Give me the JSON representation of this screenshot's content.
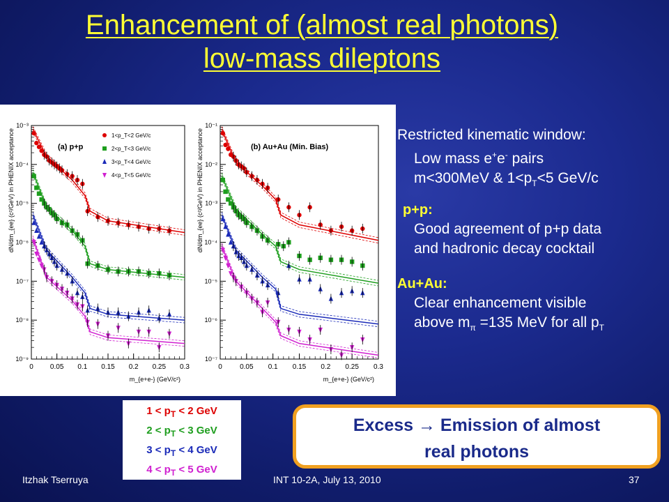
{
  "slide": {
    "title_line1": "Enhancement of (almost real photons)",
    "title_line2": "low-mass dileptons",
    "heading": "Restricted kinematic window:",
    "line_mass_a": "Low mass e",
    "line_mass_b": "e",
    "line_mass_c": " pairs",
    "sup_plus": "+",
    "sup_minus": "-",
    "line_window_a": "m<300MeV  & 1<p",
    "line_window_b": "<5 GeV/c",
    "sub_T": "T",
    "pp_title": "p+p:",
    "pp_line1": "Good agreement of p+p data",
    "pp_line2": "and hadronic decay cocktail",
    "au_title": "Au+Au:",
    "au_line1": "Clear enhancement visible",
    "au_line2a": "above m",
    "au_pi": "π",
    "au_line2b": " =135 MeV for all p",
    "excess_line1": "Excess → Emission of almost",
    "excess_line2": "real photons",
    "legend": [
      {
        "text": "1 < p",
        "sub": "T",
        "rest": " < 2 GeV",
        "color": "#dd0000"
      },
      {
        "text": "2 < p",
        "sub": "T",
        "rest": " < 3 GeV",
        "color": "#1e9e1e"
      },
      {
        "text": "3 < p",
        "sub": "T",
        "rest": " < 4 GeV",
        "color": "#1a2ab8"
      },
      {
        "text": "4 < p",
        "sub": "T",
        "rest": " < 5 GeV",
        "color": "#d020d0"
      }
    ],
    "footer_left": "Itzhak Tserruya",
    "footer_center": "INT 10-2A, July 13, 2010",
    "footer_right": "37"
  },
  "chart_data": [
    {
      "type": "scatter",
      "title": "(a) p+p",
      "xlabel": "m_{e+e-} (GeV/c²)",
      "ylabel": "dN/dm_{ee} (c²/GeV) in PHENIX acceptance",
      "xlim": [
        0,
        0.3
      ],
      "ylim_log10": [
        -9,
        -3
      ],
      "log_y": true,
      "x_ticks": [
        "0",
        "0.05",
        "0.1",
        "0.15",
        "0.2",
        "0.25",
        "0.3"
      ],
      "y_ticks": [
        "10⁻⁹",
        "10⁻⁸",
        "10⁻⁷",
        "10⁻⁶",
        "10⁻⁵",
        "10⁻⁴",
        "10⁻³"
      ],
      "legend": [
        "1<p_T<2 GeV/c",
        "2<p_T<3 GeV/c",
        "3<p_T<4 GeV/c",
        "4<p_T<5 GeV/c"
      ],
      "series": [
        {
          "name": "1<p_T<2 GeV/c",
          "color": "#dd0000",
          "marker": "circle",
          "x": [
            0.005,
            0.01,
            0.015,
            0.02,
            0.025,
            0.03,
            0.035,
            0.04,
            0.045,
            0.05,
            0.055,
            0.06,
            0.07,
            0.08,
            0.09,
            0.1,
            0.11,
            0.13,
            0.15,
            0.17,
            0.19,
            0.21,
            0.23,
            0.25,
            0.27
          ],
          "y": [
            -3.2,
            -3.45,
            -3.55,
            -3.65,
            -3.75,
            -3.8,
            -3.9,
            -3.95,
            -4.0,
            -4.05,
            -4.1,
            -4.15,
            -4.25,
            -4.3,
            -4.4,
            -4.5,
            -5.2,
            -5.35,
            -5.45,
            -5.5,
            -5.55,
            -5.6,
            -5.65,
            -5.65,
            -5.7
          ],
          "curve": [
            [
              0.003,
              -3.1
            ],
            [
              0.03,
              -3.8
            ],
            [
              0.08,
              -4.4
            ],
            [
              0.105,
              -4.8
            ],
            [
              0.115,
              -5.2
            ],
            [
              0.15,
              -5.45
            ],
            [
              0.3,
              -5.75
            ]
          ]
        },
        {
          "name": "2<p_T<3 GeV/c",
          "color": "#1e9e1e",
          "marker": "square",
          "x": [
            0.005,
            0.01,
            0.015,
            0.02,
            0.025,
            0.03,
            0.035,
            0.04,
            0.045,
            0.05,
            0.06,
            0.07,
            0.08,
            0.09,
            0.1,
            0.11,
            0.13,
            0.15,
            0.17,
            0.19,
            0.21,
            0.23,
            0.25,
            0.27
          ],
          "y": [
            -4.3,
            -4.6,
            -4.75,
            -4.9,
            -5.0,
            -5.1,
            -5.15,
            -5.25,
            -5.3,
            -5.4,
            -5.5,
            -5.55,
            -5.7,
            -5.8,
            -5.95,
            -6.55,
            -6.6,
            -6.7,
            -6.75,
            -6.75,
            -6.75,
            -6.8,
            -6.8,
            -6.85
          ],
          "curve": [
            [
              0.003,
              -4.2
            ],
            [
              0.03,
              -5.1
            ],
            [
              0.08,
              -5.7
            ],
            [
              0.105,
              -6.1
            ],
            [
              0.115,
              -6.55
            ],
            [
              0.15,
              -6.7
            ],
            [
              0.3,
              -6.9
            ]
          ]
        },
        {
          "name": "3<p_T<4 GeV/c",
          "color": "#1a2ab8",
          "marker": "triangle",
          "x": [
            0.005,
            0.01,
            0.015,
            0.02,
            0.025,
            0.03,
            0.035,
            0.04,
            0.045,
            0.05,
            0.06,
            0.07,
            0.08,
            0.09,
            0.1,
            0.11,
            0.13,
            0.15,
            0.17,
            0.19,
            0.21,
            0.23,
            0.25,
            0.27
          ],
          "y": [
            -5.5,
            -5.7,
            -5.85,
            -6.0,
            -6.1,
            -6.2,
            -6.3,
            -6.4,
            -6.5,
            -6.6,
            -6.7,
            -6.8,
            -7.0,
            -7.3,
            -7.4,
            -7.75,
            -7.7,
            -7.8,
            -7.8,
            -7.9,
            -7.8,
            -7.75,
            -7.95,
            -7.85
          ],
          "curve": [
            [
              0.003,
              -5.3
            ],
            [
              0.03,
              -6.2
            ],
            [
              0.08,
              -6.9
            ],
            [
              0.105,
              -7.3
            ],
            [
              0.115,
              -7.7
            ],
            [
              0.15,
              -7.85
            ],
            [
              0.3,
              -8.0
            ]
          ]
        },
        {
          "name": "4<p_T<5 GeV/c",
          "color": "#d020d0",
          "marker": "triangle-down",
          "x": [
            0.005,
            0.01,
            0.015,
            0.02,
            0.025,
            0.03,
            0.04,
            0.05,
            0.06,
            0.07,
            0.08,
            0.09,
            0.1,
            0.11,
            0.13,
            0.15,
            0.17,
            0.19,
            0.21,
            0.23,
            0.25,
            0.27
          ],
          "y": [
            -6.0,
            -6.3,
            -6.45,
            -6.6,
            -6.7,
            -6.9,
            -7.0,
            -7.1,
            -7.2,
            -7.3,
            -7.45,
            -7.6,
            -7.65,
            -8.05,
            -8.1,
            -8.4,
            -8.2,
            -8.6,
            -8.3,
            -8.3,
            -8.7,
            -8.35
          ],
          "curve": [
            [
              0.003,
              -5.9
            ],
            [
              0.03,
              -6.9
            ],
            [
              0.08,
              -7.5
            ],
            [
              0.105,
              -7.9
            ],
            [
              0.115,
              -8.3
            ],
            [
              0.15,
              -8.45
            ],
            [
              0.3,
              -8.6
            ]
          ]
        }
      ]
    },
    {
      "type": "scatter",
      "title": "(b) Au+Au (Min. Bias)",
      "xlabel": "m_{e+e-} (GeV/c²)",
      "ylabel": "dN/dm_{ee} (c²/GeV) in PHENIX acceptance",
      "xlim": [
        0,
        0.3
      ],
      "ylim_log10": [
        -7,
        -1
      ],
      "log_y": true,
      "x_ticks": [
        "0",
        "0.05",
        "0.1",
        "0.15",
        "0.2",
        "0.25",
        "0.3"
      ],
      "y_ticks": [
        "10⁻⁷",
        "10⁻⁶",
        "10⁻⁵",
        "10⁻⁴",
        "10⁻³",
        "10⁻²",
        "10⁻¹"
      ],
      "series": [
        {
          "name": "1<p_T<2 GeV/c",
          "color": "#dd0000",
          "marker": "circle",
          "x": [
            0.005,
            0.01,
            0.015,
            0.02,
            0.025,
            0.03,
            0.035,
            0.04,
            0.045,
            0.05,
            0.06,
            0.07,
            0.08,
            0.09,
            0.11,
            0.13,
            0.15,
            0.17,
            0.19,
            0.21,
            0.23,
            0.25,
            0.27
          ],
          "y": [
            -1.2,
            -1.5,
            -1.6,
            -1.75,
            -1.8,
            -1.9,
            -2.0,
            -2.05,
            -2.1,
            -2.2,
            -2.3,
            -2.4,
            -2.5,
            -2.6,
            -2.9,
            -3.1,
            -3.3,
            -3.1,
            -3.55,
            -3.7,
            -3.6,
            -3.7,
            -3.65
          ],
          "curve": [
            [
              0.003,
              -1.1
            ],
            [
              0.03,
              -1.95
            ],
            [
              0.08,
              -2.55
            ],
            [
              0.105,
              -2.9
            ],
            [
              0.115,
              -3.3
            ],
            [
              0.15,
              -3.55
            ],
            [
              0.3,
              -3.95
            ]
          ]
        },
        {
          "name": "2<p_T<3 GeV/c",
          "color": "#1e9e1e",
          "marker": "square",
          "x": [
            0.005,
            0.01,
            0.015,
            0.02,
            0.025,
            0.03,
            0.035,
            0.04,
            0.045,
            0.05,
            0.06,
            0.07,
            0.08,
            0.09,
            0.11,
            0.12,
            0.13,
            0.15,
            0.17,
            0.19,
            0.21,
            0.23,
            0.25,
            0.27
          ],
          "y": [
            -2.4,
            -2.7,
            -2.9,
            -3.0,
            -3.1,
            -3.2,
            -3.3,
            -3.35,
            -3.4,
            -3.5,
            -3.6,
            -3.7,
            -3.85,
            -3.95,
            -4.05,
            -4.1,
            -4.0,
            -4.35,
            -4.45,
            -4.4,
            -4.45,
            -4.45,
            -4.5,
            -4.6
          ],
          "curve": [
            [
              0.003,
              -2.3
            ],
            [
              0.03,
              -3.15
            ],
            [
              0.08,
              -3.8
            ],
            [
              0.105,
              -4.1
            ],
            [
              0.115,
              -4.5
            ],
            [
              0.15,
              -4.7
            ],
            [
              0.3,
              -5.05
            ]
          ]
        },
        {
          "name": "3<p_T<4 GeV/c",
          "color": "#1a2ab8",
          "marker": "triangle",
          "x": [
            0.005,
            0.01,
            0.015,
            0.02,
            0.025,
            0.03,
            0.035,
            0.04,
            0.045,
            0.05,
            0.06,
            0.07,
            0.08,
            0.09,
            0.11,
            0.13,
            0.15,
            0.17,
            0.19,
            0.21,
            0.23,
            0.25,
            0.27
          ],
          "y": [
            -3.4,
            -3.6,
            -3.8,
            -4.0,
            -4.1,
            -4.25,
            -4.35,
            -4.4,
            -4.5,
            -4.6,
            -4.7,
            -4.85,
            -5.0,
            -5.1,
            -5.3,
            -4.6,
            -4.95,
            -4.95,
            -5.2,
            -5.45,
            -5.3,
            -5.25,
            -5.3
          ],
          "curve": [
            [
              0.003,
              -3.3
            ],
            [
              0.03,
              -4.2
            ],
            [
              0.08,
              -4.9
            ],
            [
              0.105,
              -5.2
            ],
            [
              0.115,
              -5.7
            ],
            [
              0.15,
              -5.85
            ],
            [
              0.3,
              -6.1
            ]
          ]
        },
        {
          "name": "4<p_T<5 GeV/c",
          "color": "#d020d0",
          "marker": "triangle-down",
          "x": [
            0.005,
            0.01,
            0.015,
            0.02,
            0.025,
            0.03,
            0.04,
            0.05,
            0.06,
            0.07,
            0.08,
            0.09,
            0.11,
            0.13,
            0.15,
            0.17,
            0.19,
            0.21,
            0.23,
            0.25,
            0.27
          ],
          "y": [
            -4.2,
            -4.4,
            -4.6,
            -4.8,
            -4.9,
            -5.0,
            -5.15,
            -5.3,
            -5.45,
            -5.55,
            -5.8,
            -5.55,
            -6.05,
            -6.25,
            -6.3,
            -6.5,
            -6.25,
            -6.75,
            -6.9,
            -6.7,
            -6.5
          ],
          "curve": [
            [
              0.003,
              -4.1
            ],
            [
              0.03,
              -5.0
            ],
            [
              0.08,
              -5.7
            ],
            [
              0.105,
              -6.05
            ],
            [
              0.115,
              -6.4
            ],
            [
              0.15,
              -6.6
            ],
            [
              0.3,
              -6.9
            ]
          ]
        }
      ]
    }
  ]
}
